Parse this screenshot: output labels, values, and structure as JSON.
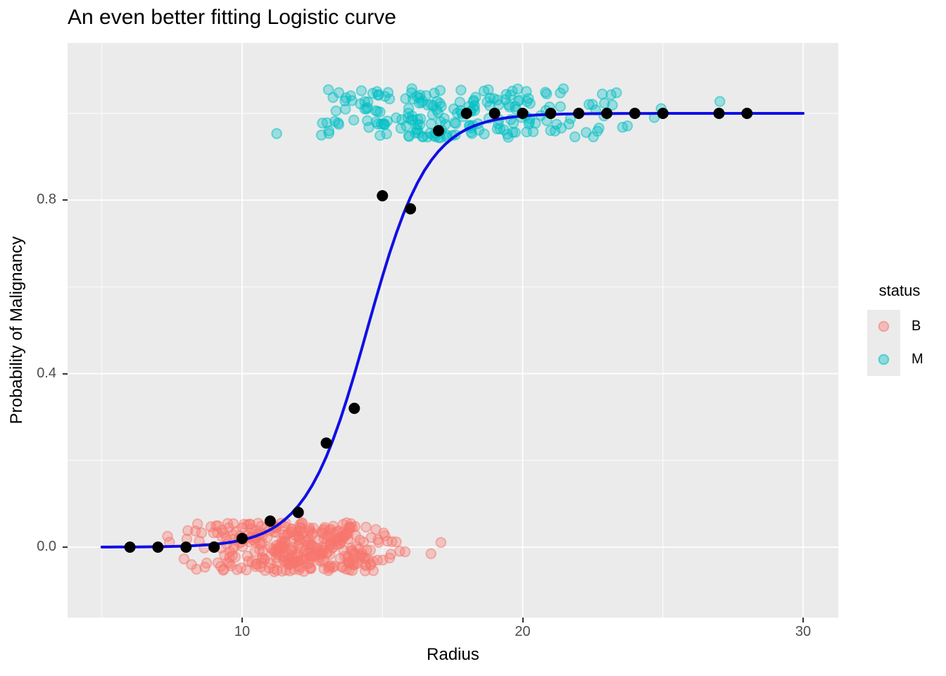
{
  "chart_data": {
    "type": "scatter",
    "title": "An even better fitting Logistic curve",
    "xlabel": "Radius",
    "ylabel": "Probability of Malignancy",
    "xlim": [
      3.8,
      31.3
    ],
    "ylim": [
      -0.19,
      1.16
    ],
    "grid": true,
    "panel_color": "#EBEBEB",
    "grid_color": "#FFFFFF",
    "x_ticks": [
      {
        "v": 10,
        "label": "10"
      },
      {
        "v": 20,
        "label": "20"
      },
      {
        "v": 30,
        "label": "30"
      }
    ],
    "x_minor_ticks": [
      5,
      15,
      25
    ],
    "y_ticks": [
      {
        "v": 0.0,
        "label": "0.0"
      },
      {
        "v": 0.4,
        "label": "0.4"
      },
      {
        "v": 0.8,
        "label": "0.8"
      }
    ],
    "y_minor_ticks": [
      0.2,
      0.6,
      1.0
    ],
    "legend": {
      "title": "status",
      "position": "right",
      "entries": [
        {
          "label": "B",
          "color": "#F8766D"
        },
        {
          "label": "M",
          "color": "#00BFC4"
        }
      ]
    },
    "series": [
      {
        "name": "benign-jitter",
        "type": "jitter-cluster",
        "status": "B",
        "color": "#F8766D",
        "n": 357,
        "x_mean": 12.15,
        "x_sd": 1.78,
        "x_range": [
          7.0,
          18.1
        ],
        "y_center": 0,
        "y_jitter": 0.057,
        "seed": 101
      },
      {
        "name": "malignant-jitter",
        "type": "jitter-cluster",
        "status": "M",
        "color": "#00BFC4",
        "n": 212,
        "x_mean": 17.45,
        "x_sd": 3.1,
        "x_range": [
          10.95,
          28.25
        ],
        "y_center": 1,
        "y_jitter": 0.057,
        "seed": 202
      },
      {
        "name": "binned-proportions",
        "type": "points",
        "color": "#000000",
        "points": [
          [
            6,
            0.0
          ],
          [
            7,
            0.0
          ],
          [
            8,
            0.0
          ],
          [
            9,
            0.0
          ],
          [
            10,
            0.02
          ],
          [
            11,
            0.06
          ],
          [
            12,
            0.08
          ],
          [
            13,
            0.24
          ],
          [
            14,
            0.32
          ],
          [
            15,
            0.81
          ],
          [
            16,
            0.78
          ],
          [
            17,
            0.96
          ],
          [
            18,
            1.0
          ],
          [
            19,
            1.0
          ],
          [
            20,
            1.0
          ],
          [
            21,
            1.0
          ],
          [
            22,
            1.0
          ],
          [
            23,
            1.0
          ],
          [
            24,
            1.0
          ],
          [
            25,
            1.0
          ],
          [
            27,
            1.0
          ],
          [
            28,
            1.0
          ]
        ]
      },
      {
        "name": "logistic-fit",
        "type": "logistic-curve",
        "color": "#0F0FE6",
        "x0": 14.45,
        "k": 0.92,
        "x_range": [
          5,
          30
        ]
      }
    ]
  }
}
